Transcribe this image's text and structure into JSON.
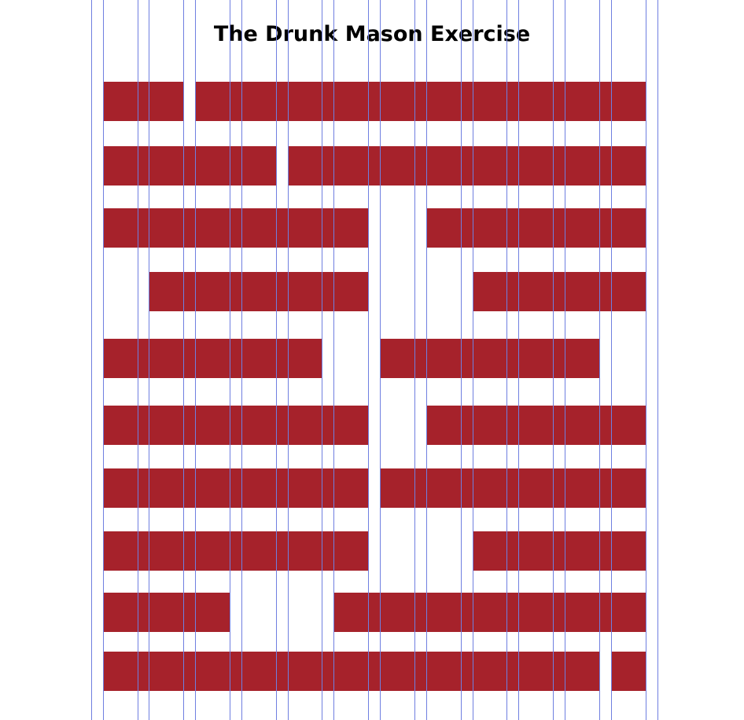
{
  "title": "The Drunk Mason Exercise",
  "colors": {
    "background": "#ffffff",
    "brick": "#a6222b",
    "guide_line": "#6f7fe0",
    "title_text": "#000000"
  },
  "rows": [
    {
      "bricks": 2
    },
    {
      "bricks": 2
    },
    {
      "bricks": 2
    },
    {
      "bricks": 2
    },
    {
      "bricks": 2
    },
    {
      "bricks": 2
    },
    {
      "bricks": 2
    },
    {
      "bricks": 2
    },
    {
      "bricks": 2
    },
    {
      "bricks": 2
    }
  ]
}
